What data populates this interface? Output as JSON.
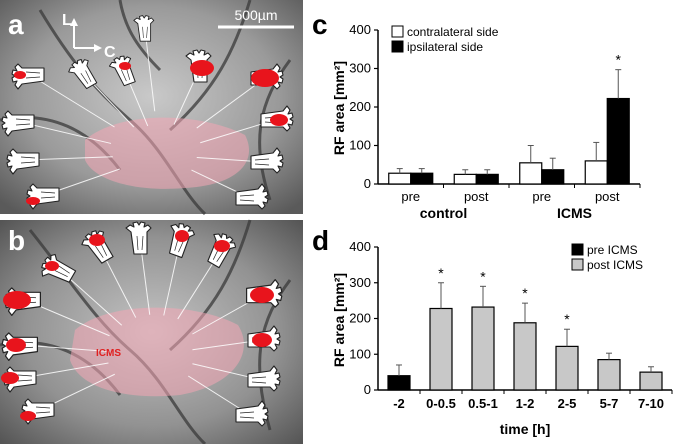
{
  "panels": {
    "a": {
      "letter": "a",
      "scale_bar": "500µm",
      "orient_l": "L",
      "orient_c": "C"
    },
    "b": {
      "letter": "b",
      "annotation": "ICMS"
    }
  },
  "chart_data": [
    {
      "id": "c",
      "letter": "c",
      "type": "bar",
      "categories": [
        "pre",
        "post",
        "pre",
        "post"
      ],
      "groups": [
        {
          "label": "control",
          "span": [
            0,
            1
          ]
        },
        {
          "label": "ICMS",
          "span": [
            2,
            3
          ]
        }
      ],
      "series": [
        {
          "name": "contralateral side",
          "color": "#ffffff",
          "values": [
            28,
            25,
            55,
            60
          ],
          "errors": [
            12,
            12,
            45,
            48
          ]
        },
        {
          "name": "ipsilateral side",
          "color": "#000000",
          "values": [
            28,
            25,
            37,
            222
          ],
          "errors": [
            12,
            12,
            30,
            75
          ]
        }
      ],
      "significance": [
        {
          "category": 3,
          "series": 1,
          "mark": "*"
        }
      ],
      "ylabel": "RF area [mm²]",
      "ylim": [
        0,
        400
      ],
      "yticks": [
        0,
        100,
        200,
        300,
        400
      ],
      "legend_position": "top-left",
      "grid": false
    },
    {
      "id": "d",
      "letter": "d",
      "type": "bar",
      "categories": [
        "-2",
        "0-0.5",
        "0.5-1",
        "1-2",
        "2-5",
        "5-7",
        "7-10"
      ],
      "series": [
        {
          "name": "pre ICMS",
          "color": "#000000",
          "values": [
            40,
            null,
            null,
            null,
            null,
            null,
            null
          ],
          "errors": [
            30,
            null,
            null,
            null,
            null,
            null,
            null
          ]
        },
        {
          "name": "post ICMS",
          "color": "#c8c8c8",
          "values": [
            null,
            228,
            232,
            188,
            122,
            85,
            50
          ],
          "errors": [
            null,
            72,
            58,
            55,
            48,
            18,
            15
          ]
        }
      ],
      "significance": [
        {
          "category": 1,
          "mark": "*"
        },
        {
          "category": 2,
          "mark": "*"
        },
        {
          "category": 3,
          "mark": "*"
        },
        {
          "category": 4,
          "mark": "*"
        }
      ],
      "xlabel": "time [h]",
      "ylabel": "RF area [mm²]",
      "ylim": [
        0,
        400
      ],
      "yticks": [
        0,
        100,
        200,
        300,
        400
      ],
      "legend_position": "top-right",
      "grid": false
    }
  ]
}
